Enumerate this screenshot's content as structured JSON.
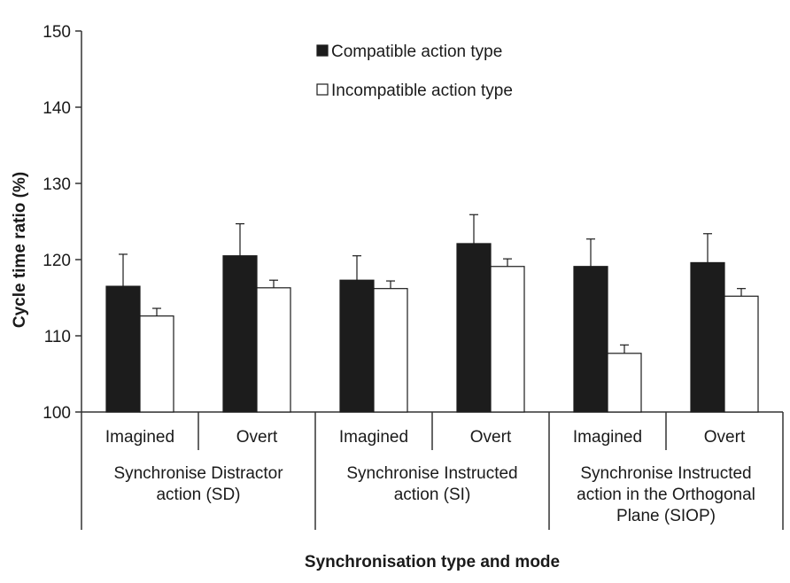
{
  "chart_data": {
    "type": "bar",
    "ylabel": "Cycle time ratio (%)",
    "xlabel": "Synchronisation type and mode",
    "ylim": [
      100,
      150
    ],
    "yticks": [
      100,
      110,
      120,
      130,
      140,
      150
    ],
    "grid": false,
    "legend_position": "top-center",
    "groups": [
      {
        "lines": [
          "Synchronise Distractor",
          "action (SD)"
        ],
        "subcategories": [
          "Imagined",
          "Overt"
        ]
      },
      {
        "lines": [
          "Synchronise Instructed",
          "action (SI)"
        ],
        "subcategories": [
          "Imagined",
          "Overt"
        ]
      },
      {
        "lines": [
          "Synchronise Instructed",
          "action in the Orthogonal",
          "Plane (SIOP)"
        ],
        "subcategories": [
          "Imagined",
          "Overt"
        ]
      }
    ],
    "series": [
      {
        "name": "Compatible action type",
        "color": "#1c1c1c",
        "values": [
          116.5,
          120.5,
          117.3,
          122.1,
          119.1,
          119.6
        ],
        "errors": [
          4.2,
          4.2,
          3.2,
          3.8,
          3.6,
          3.8
        ]
      },
      {
        "name": "Incompatible action type",
        "color": "#ffffff",
        "values": [
          112.6,
          116.3,
          116.2,
          119.1,
          107.7,
          115.2
        ],
        "errors": [
          1.0,
          1.0,
          1.0,
          1.0,
          1.1,
          1.0
        ]
      }
    ]
  }
}
